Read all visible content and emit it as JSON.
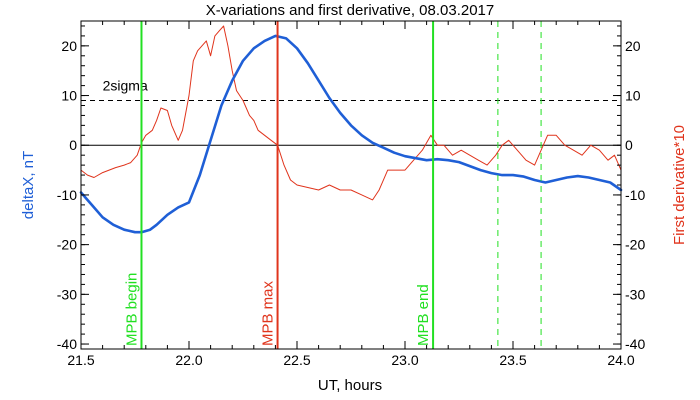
{
  "chart_data": {
    "type": "line",
    "title": "X-variations and first derivative, 08.03.2017",
    "xlabel": "UT, hours",
    "ylabel_left": "deltaX, nT",
    "ylabel_right": "First derivative*10",
    "xlim": [
      21.5,
      24.0
    ],
    "ylim": [
      -41,
      25
    ],
    "x_ticks": [
      21.5,
      22.0,
      22.5,
      23.0,
      23.5,
      24.0
    ],
    "x_tick_labels": [
      "21.5",
      "22.0",
      "22.5",
      "23.0",
      "23.5",
      "24.0"
    ],
    "y_ticks": [
      20,
      10,
      0,
      -10,
      -20,
      -30,
      -40
    ],
    "y_tick_labels": [
      "20",
      "10",
      "0",
      "-10",
      "-20",
      "-30",
      "-40"
    ],
    "threshold": {
      "label": "2sigma",
      "value": 9,
      "style": "dashed",
      "color": "#000000"
    },
    "zero_line": 0,
    "colors": {
      "deltaX": "#1f5fd6",
      "derivative": "#e0341c",
      "mpb_green": "#22e022",
      "mpb_red": "#e0341c",
      "left_axis_title": "#1f5fd6",
      "right_axis_title": "#e0341c"
    },
    "markers": [
      {
        "x": 21.78,
        "label": "MPB begin",
        "color": "#22e022",
        "style": "solid"
      },
      {
        "x": 22.41,
        "label": "MPB max",
        "color": "#e0341c",
        "style": "solid"
      },
      {
        "x": 23.13,
        "label": "MPB end",
        "color": "#22e022",
        "style": "solid"
      },
      {
        "x": 23.43,
        "label": "",
        "color": "#22e022",
        "style": "dashed"
      },
      {
        "x": 23.63,
        "label": "",
        "color": "#22e022",
        "style": "dashed"
      }
    ],
    "series": [
      {
        "name": "deltaX, nT",
        "color": "#1f5fd6",
        "x": [
          21.5,
          21.55,
          21.6,
          21.65,
          21.7,
          21.75,
          21.78,
          21.82,
          21.85,
          21.9,
          21.95,
          22.0,
          22.05,
          22.1,
          22.15,
          22.2,
          22.25,
          22.3,
          22.35,
          22.4,
          22.45,
          22.5,
          22.55,
          22.6,
          22.65,
          22.7,
          22.75,
          22.8,
          22.85,
          22.9,
          22.95,
          23.0,
          23.05,
          23.1,
          23.15,
          23.2,
          23.25,
          23.3,
          23.35,
          23.4,
          23.45,
          23.5,
          23.55,
          23.6,
          23.65,
          23.7,
          23.75,
          23.8,
          23.85,
          23.9,
          23.95,
          24.0
        ],
        "values": [
          -9.5,
          -12,
          -14.5,
          -16,
          -17,
          -17.5,
          -17.5,
          -17,
          -16,
          -14,
          -12.5,
          -11.5,
          -6,
          1,
          8,
          13,
          17,
          19.5,
          21,
          22,
          21.5,
          19.5,
          16.5,
          13,
          9.5,
          6.5,
          4,
          2,
          0.5,
          -0.5,
          -1.5,
          -2.2,
          -2.6,
          -3,
          -2.8,
          -3,
          -3.4,
          -4.2,
          -5,
          -5.6,
          -6,
          -6,
          -6.3,
          -7,
          -7.5,
          -7,
          -6.5,
          -6.2,
          -6.5,
          -7,
          -7.5,
          -9
        ]
      },
      {
        "name": "First derivative*10",
        "color": "#e0341c",
        "x": [
          21.5,
          21.53,
          21.56,
          21.6,
          21.63,
          21.66,
          21.7,
          21.73,
          21.76,
          21.78,
          21.8,
          21.83,
          21.85,
          21.87,
          21.9,
          21.92,
          21.95,
          21.97,
          22.0,
          22.02,
          22.04,
          22.06,
          22.08,
          22.1,
          22.12,
          22.14,
          22.16,
          22.18,
          22.2,
          22.22,
          22.25,
          22.28,
          22.3,
          22.32,
          22.35,
          22.38,
          22.41,
          22.44,
          22.47,
          22.5,
          22.55,
          22.6,
          22.65,
          22.7,
          22.75,
          22.8,
          22.85,
          22.88,
          22.92,
          22.96,
          23.0,
          23.04,
          23.08,
          23.12,
          23.15,
          23.18,
          23.22,
          23.26,
          23.3,
          23.34,
          23.38,
          23.42,
          23.45,
          23.48,
          23.52,
          23.56,
          23.6,
          23.63,
          23.66,
          23.7,
          23.74,
          23.78,
          23.82,
          23.86,
          23.9,
          23.94,
          23.97,
          24.0
        ],
        "values": [
          -5,
          -6,
          -6.5,
          -5.5,
          -5,
          -4.5,
          -4,
          -3.5,
          -2,
          0.5,
          2,
          3,
          5,
          7.5,
          7,
          4,
          1,
          3,
          10,
          17,
          19,
          20,
          21,
          18,
          22,
          23,
          24,
          20,
          15,
          11,
          9,
          6,
          5,
          3,
          2,
          1,
          0,
          -4,
          -7,
          -8,
          -8.5,
          -9,
          -8,
          -9,
          -9,
          -10,
          -11,
          -9,
          -5,
          -5,
          -5,
          -3,
          -1,
          2,
          0,
          0,
          -2,
          -1,
          -2,
          -3,
          -4,
          -2,
          0,
          1,
          -1,
          -3,
          -4,
          -1,
          2,
          2,
          0,
          -1,
          -2,
          0,
          -1,
          -3,
          -2,
          -5
        ]
      }
    ]
  }
}
